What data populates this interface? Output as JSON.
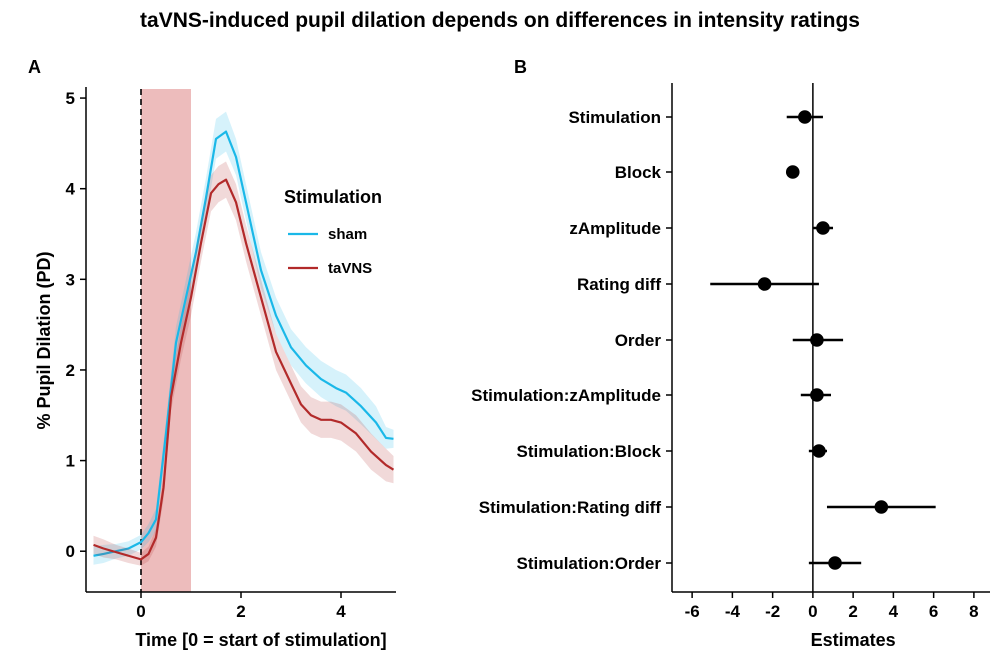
{
  "figure": {
    "title": "taVNS-induced pupil dilation depends on differences in intensity ratings",
    "colors": {
      "sham": "#1ab8e8",
      "taVNS": "#b22a2a",
      "stim_window": "#e7a5a5",
      "point": "#000000"
    }
  },
  "chart_data": [
    {
      "panel": "A",
      "type": "line",
      "xlabel": "Time [0 = start of stimulation]",
      "ylabel": "% Pupil Dilation (PD)",
      "xlim": [
        -1.1,
        5.1
      ],
      "ylim": [
        -0.45,
        5.1
      ],
      "x_ticks": [
        0,
        2,
        4
      ],
      "y_ticks": [
        0,
        1,
        2,
        3,
        4,
        5
      ],
      "stimulation_window": [
        0,
        1
      ],
      "stimulation_onset_marker": 0,
      "legend": {
        "title": "Stimulation",
        "placement": "inside top-right",
        "entries": [
          "sham",
          "taVNS"
        ]
      },
      "series": [
        {
          "name": "sham",
          "x": [
            -0.95,
            -0.75,
            -0.5,
            -0.25,
            0.0,
            0.15,
            0.3,
            0.5,
            0.7,
            0.9,
            1.1,
            1.3,
            1.5,
            1.7,
            1.9,
            2.1,
            2.4,
            2.7,
            3.0,
            3.3,
            3.6,
            3.9,
            4.1,
            4.4,
            4.7,
            4.9,
            5.05
          ],
          "y": [
            -0.05,
            -0.03,
            0.0,
            0.03,
            0.1,
            0.2,
            0.35,
            1.3,
            2.3,
            2.8,
            3.3,
            3.9,
            4.55,
            4.63,
            4.35,
            3.85,
            3.1,
            2.6,
            2.25,
            2.05,
            1.9,
            1.8,
            1.75,
            1.6,
            1.42,
            1.25,
            1.24
          ],
          "band": [
            0.1,
            0.1,
            0.08,
            0.08,
            0.08,
            0.1,
            0.12,
            0.15,
            0.18,
            0.2,
            0.22,
            0.22,
            0.22,
            0.22,
            0.2,
            0.2,
            0.2,
            0.2,
            0.2,
            0.2,
            0.2,
            0.2,
            0.2,
            0.2,
            0.18,
            0.12,
            0.1
          ]
        },
        {
          "name": "taVNS",
          "x": [
            -0.95,
            -0.75,
            -0.5,
            -0.25,
            0.0,
            0.15,
            0.3,
            0.45,
            0.6,
            0.8,
            1.0,
            1.2,
            1.4,
            1.55,
            1.7,
            1.9,
            2.1,
            2.4,
            2.7,
            3.0,
            3.2,
            3.4,
            3.6,
            3.8,
            4.0,
            4.3,
            4.6,
            4.9,
            5.05
          ],
          "y": [
            0.07,
            0.03,
            -0.01,
            -0.05,
            -0.09,
            -0.03,
            0.15,
            0.7,
            1.7,
            2.3,
            2.8,
            3.4,
            3.95,
            4.05,
            4.1,
            3.85,
            3.4,
            2.8,
            2.2,
            1.85,
            1.62,
            1.5,
            1.45,
            1.45,
            1.42,
            1.3,
            1.1,
            0.95,
            0.9
          ],
          "band": [
            0.1,
            0.1,
            0.08,
            0.08,
            0.07,
            0.08,
            0.1,
            0.13,
            0.15,
            0.18,
            0.2,
            0.2,
            0.2,
            0.2,
            0.2,
            0.2,
            0.2,
            0.2,
            0.2,
            0.2,
            0.2,
            0.2,
            0.2,
            0.2,
            0.2,
            0.2,
            0.2,
            0.18,
            0.15
          ]
        }
      ]
    },
    {
      "panel": "B",
      "type": "scatter",
      "xlabel": "Estimates",
      "ylabel": "",
      "xlim": [
        -7.0,
        8.8
      ],
      "x_ticks": [
        -6,
        -4,
        -2,
        0,
        2,
        4,
        6,
        8
      ],
      "reference_line": 0,
      "categories": [
        "Stimulation",
        "Block",
        "zAmplitude",
        "Rating diff",
        "Order",
        "Stimulation:zAmplitude",
        "Stimulation:Block",
        "Stimulation:Rating diff",
        "Stimulation:Order"
      ],
      "estimates": [
        -0.4,
        -1.0,
        0.5,
        -2.4,
        0.2,
        0.2,
        0.3,
        3.4,
        1.1
      ],
      "ci_low": [
        -1.3,
        -1.15,
        0.0,
        -5.1,
        -1.0,
        -0.6,
        -0.2,
        0.7,
        -0.2
      ],
      "ci_high": [
        0.5,
        -0.85,
        1.0,
        0.3,
        1.5,
        0.9,
        0.7,
        6.1,
        2.4
      ]
    }
  ]
}
